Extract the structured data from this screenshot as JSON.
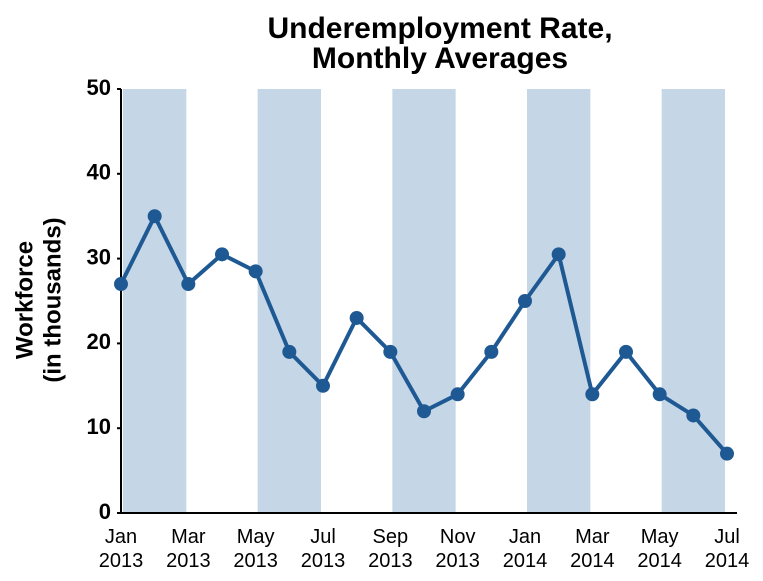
{
  "chart_data": {
    "type": "line",
    "title": [
      "Underemployment Rate,",
      "Monthly Averages"
    ],
    "ylabel": [
      "Workforce",
      "(in thousands)"
    ],
    "categories": [
      "Jan 2013",
      null,
      "Mar 2013",
      null,
      "May 2013",
      null,
      "Jul 2013",
      null,
      "Sep 2013",
      null,
      "Nov 2013",
      null,
      "Jan 2014",
      null,
      "Mar 2014",
      null,
      "May 2014",
      null,
      "Jul 2014"
    ],
    "series": [
      {
        "color": "#1f5994",
        "values": [
          27,
          35,
          27,
          30.5,
          28.5,
          19,
          15,
          23,
          19,
          12,
          14,
          19,
          25,
          30.5,
          14,
          19,
          14,
          11.5,
          7
        ]
      }
    ],
    "ylim": [
      0,
      50
    ],
    "yticks": [
      0,
      10,
      20,
      30,
      40,
      50
    ],
    "band_color": "#c5d6e6"
  }
}
